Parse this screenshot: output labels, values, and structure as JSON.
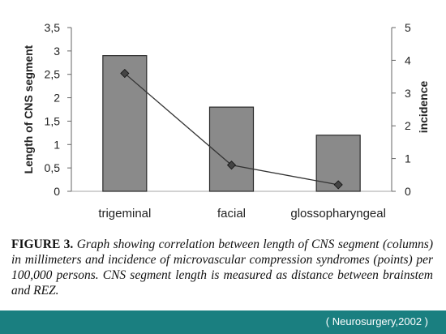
{
  "chart_data": {
    "type": "bar",
    "categories": [
      "trigeminal",
      "facial",
      "glossopharyngeal"
    ],
    "series": [
      {
        "values": [
          2.9,
          1.8,
          1.2
        ]
      },
      {
        "values": [
          3.6,
          0.8,
          0.2
        ]
      }
    ],
    "ylabel": "Length of CNS segment",
    "y2label": "incidence",
    "ylim": [
      0,
      3.5
    ],
    "y2lim": [
      0,
      5
    ],
    "yticks": [
      "0",
      "0,5",
      "1",
      "1,5",
      "2",
      "2,5",
      "3",
      "3,5"
    ],
    "y2ticks": [
      "0",
      "1",
      "2",
      "3",
      "4",
      "5"
    ],
    "grid": false,
    "colors": {
      "bar": "#8a8a8a",
      "bar_edge": "#2a2a2a",
      "line": "#333333",
      "marker": "#444444"
    }
  },
  "caption": {
    "label": "FIGURE 3.",
    "text": "Graph showing correlation between length of CNS segment (columns) in millimeters and incidence of microvascular compression syndromes (points) per 100,000 persons. CNS segment length is measured as distance between brainstem and REZ."
  },
  "footer": {
    "source": "( Neurosurgery,2002 )",
    "color": "#1a7f80"
  }
}
